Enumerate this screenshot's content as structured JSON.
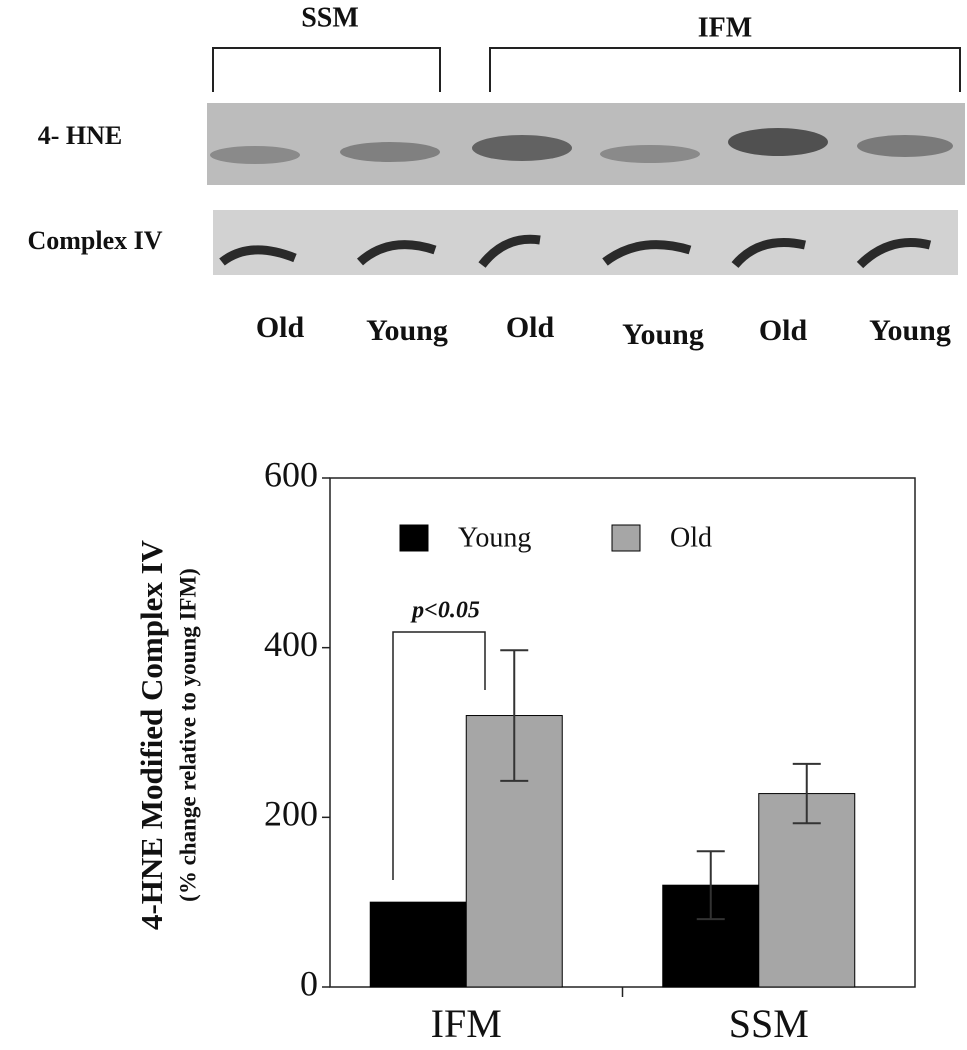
{
  "blot": {
    "groups": [
      "SSM",
      "IFM"
    ],
    "rows": [
      "4- HNE",
      "Complex IV"
    ],
    "lanes": [
      "Old",
      "Young",
      "Old",
      "Young",
      "Old",
      "Young"
    ]
  },
  "chart_data": {
    "type": "bar",
    "y_label": "4-HNE  Modified Complex IV",
    "y_sublabel": "(% change relative to young IFM)",
    "annotation": "p<0.05",
    "categories": [
      "IFM",
      "SSM"
    ],
    "series": [
      {
        "name": "Young",
        "color": "#000000",
        "values": [
          100,
          120
        ],
        "errors": [
          null,
          40
        ]
      },
      {
        "name": "Old",
        "color": "#a6a6a6",
        "values": [
          320,
          228
        ],
        "errors": [
          77,
          35
        ]
      }
    ],
    "ylim": [
      0,
      600
    ],
    "yticks": [
      0,
      200,
      400,
      600
    ]
  }
}
